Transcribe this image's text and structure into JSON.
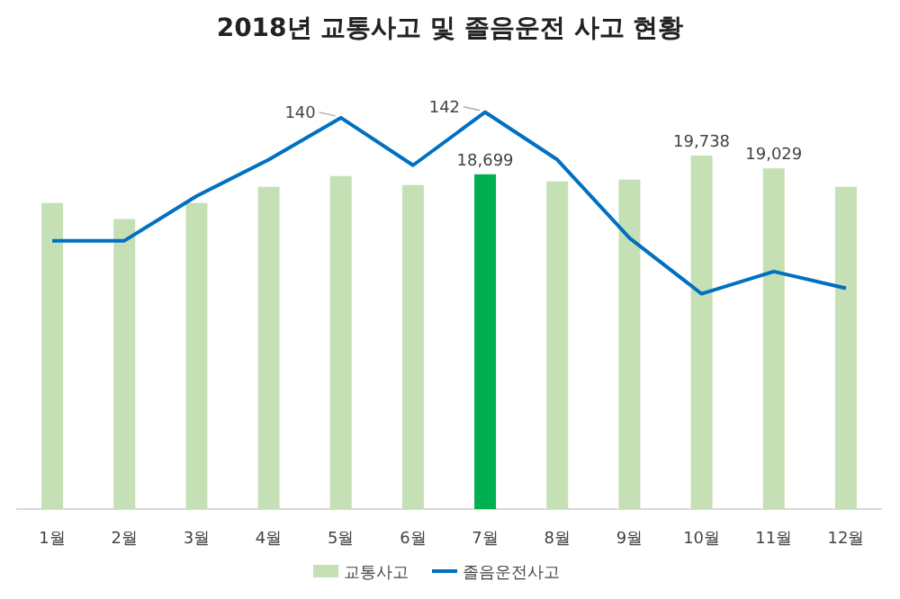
{
  "chart_data": {
    "type": "bar",
    "title": "2018년 교통사고 및 졸음운전 사고 현황",
    "categories": [
      "1월",
      "2월",
      "3월",
      "4월",
      "5월",
      "6월",
      "7월",
      "8월",
      "9월",
      "10월",
      "11월",
      "12월"
    ],
    "series": [
      {
        "name": "교통사고",
        "color": "#c5e0b4",
        "colors": [
          "#c5e0b4",
          "#c5e0b4",
          "#c5e0b4",
          "#c5e0b4",
          "#c5e0b4",
          "#c5e0b4",
          "#00b050",
          "#c5e0b4",
          "#c5e0b4",
          "#c5e0b4",
          "#c5e0b4",
          "#c5e0b4"
        ],
        "values": [
          17100,
          16200,
          17100,
          18000,
          18600,
          18100,
          18699,
          18300,
          18400,
          19738,
          19029,
          18000
        ],
        "value_labels": [
          null,
          null,
          null,
          null,
          null,
          null,
          "18,699",
          null,
          null,
          "19,738",
          "19,029",
          null
        ]
      },
      {
        "name": "졸음운전사고",
        "type": "line",
        "axis": "y2",
        "color": "#0070c0",
        "values": [
          96,
          96,
          112,
          125,
          140,
          123,
          142,
          125,
          97,
          77,
          85,
          79
        ],
        "value_labels": [
          null,
          null,
          null,
          null,
          "140",
          null,
          "142",
          null,
          null,
          null,
          null,
          null
        ]
      }
    ],
    "legend": "bottom",
    "marker": "none",
    "line_style": "solid"
  }
}
